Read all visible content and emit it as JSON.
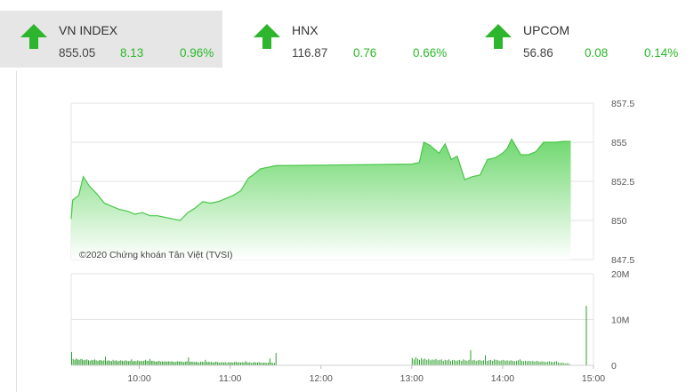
{
  "indices": [
    {
      "name": "VN INDEX",
      "value": "855.05",
      "change": "8.13",
      "percent": "0.96%",
      "direction": "up",
      "active": true
    },
    {
      "name": "HNX",
      "value": "116.87",
      "change": "0.76",
      "percent": "0.66%",
      "direction": "up",
      "active": false
    },
    {
      "name": "UPCOM",
      "value": "56.86",
      "change": "0.08",
      "percent": "0.14%",
      "direction": "up",
      "active": false
    }
  ],
  "colors": {
    "up": "#2db52d",
    "text_up": "#29b829",
    "area_top": "#7fdc7f",
    "line": "#49c649",
    "volume": "#2e9e2e"
  },
  "chart_data": [
    {
      "type": "area",
      "credit": "©2020 Chứng khoán Tân Việt (TVSI)",
      "x_tick_labels": [
        "10:00",
        "11:00",
        "12:00",
        "13:00",
        "14:00",
        "15:00"
      ],
      "y_tick_labels": [
        "857.5",
        "855",
        "852.5",
        "850",
        "847.5"
      ],
      "ylim": [
        847.5,
        857.5
      ],
      "xlim": [
        "09:15",
        "15:00"
      ],
      "grid": true,
      "x": [
        "09:15",
        "09:16",
        "09:20",
        "09:23",
        "09:27",
        "09:32",
        "09:37",
        "09:42",
        "09:47",
        "09:52",
        "09:57",
        "10:02",
        "10:07",
        "10:12",
        "10:17",
        "10:22",
        "10:27",
        "10:32",
        "10:37",
        "10:42",
        "10:47",
        "10:52",
        "10:57",
        "11:02",
        "11:07",
        "11:12",
        "11:15",
        "11:20",
        "11:25",
        "11:30",
        "13:00",
        "13:05",
        "13:08",
        "13:12",
        "13:18",
        "13:22",
        "13:26",
        "13:30",
        "13:35",
        "13:40",
        "13:45",
        "13:50",
        "13:55",
        "14:00",
        "14:03",
        "14:06",
        "14:12",
        "14:17",
        "14:22",
        "14:27",
        "14:30",
        "14:35",
        "14:40",
        "14:45"
      ],
      "y": [
        850.1,
        851.3,
        851.6,
        852.8,
        852.2,
        851.7,
        851.1,
        850.9,
        850.7,
        850.6,
        850.4,
        850.5,
        850.3,
        850.3,
        850.2,
        850.1,
        850.0,
        850.5,
        850.8,
        851.2,
        851.1,
        851.2,
        851.4,
        851.6,
        851.9,
        852.7,
        852.9,
        853.3,
        853.4,
        853.5,
        853.6,
        853.7,
        855.0,
        854.8,
        854.3,
        854.9,
        853.9,
        854.1,
        852.6,
        852.8,
        852.9,
        853.9,
        854.0,
        854.3,
        854.6,
        855.2,
        854.2,
        854.2,
        854.4,
        855.0,
        855.0,
        855.0,
        855.05,
        855.05
      ]
    },
    {
      "type": "bar",
      "y_tick_labels": [
        "20M",
        "10M",
        "0"
      ],
      "ylim": [
        0,
        20
      ],
      "unit": "M",
      "x_range": [
        "09:15",
        "15:00"
      ],
      "grid": true,
      "values": [
        2.9,
        1.4,
        1.2,
        1.5,
        1.3,
        1.2,
        1.4,
        1.3,
        1.1,
        1.2,
        1.3,
        1.1,
        1.0,
        1.2,
        1.1,
        1.3,
        1.1,
        1.0,
        1.1,
        1.2,
        1.0,
        1.1,
        1.9,
        1.0,
        1.1,
        1.0,
        0.9,
        1.2,
        1.0,
        1.1,
        0.9,
        1.0,
        1.1,
        1.0,
        0.9,
        1.1,
        1.0,
        0.9,
        1.0,
        1.3,
        0.9,
        1.0,
        0.9,
        1.1,
        0.9,
        1.0,
        0.9,
        1.0,
        1.2,
        1.0,
        1.0,
        1.4,
        1.0,
        1.0,
        0.9,
        0.8,
        0.9,
        1.0,
        0.8,
        0.9,
        0.8,
        0.9,
        0.8,
        0.9,
        0.8,
        0.9,
        0.8,
        0.7,
        0.8,
        0.9,
        0.8,
        0.9,
        0.8,
        0.7,
        0.8,
        0.9,
        1.7,
        0.8,
        0.8,
        0.8,
        0.7,
        0.8,
        0.7,
        0.6,
        0.8,
        0.8,
        0.7,
        1.2,
        0.7,
        0.8,
        0.7,
        0.8,
        0.6,
        0.7,
        0.8,
        0.7,
        0.6,
        0.6,
        0.7,
        0.6,
        0.7,
        0.5,
        0.7,
        0.6,
        0.7,
        0.6,
        0.7,
        0.8,
        0.6,
        0.7,
        0.6,
        0.7,
        0.6,
        0.9,
        0.7,
        0.6,
        0.7,
        0.5,
        0.6,
        0.7,
        0.6,
        0.6,
        0.7,
        0.6,
        0.5,
        0.6,
        0.6,
        0.5,
        0.6,
        1.5,
        0.6,
        0.5,
        0.5,
        2.7,
        1.6,
        1.3,
        1.8,
        1.4,
        1.2,
        1.6,
        1.3,
        1.5,
        1.2,
        1.4,
        1.1,
        1.3,
        1.2,
        1.4,
        1.1,
        1.2,
        1.3,
        1.0,
        1.2,
        1.1,
        1.3,
        1.0,
        1.1,
        1.2,
        1.0,
        1.1,
        1.2,
        1.0,
        1.3,
        1.1,
        1.0,
        1.2,
        3.3,
        1.1,
        1.2,
        1.0,
        1.1,
        1.2,
        1.0,
        1.1,
        2.2,
        1.0,
        1.1,
        1.2,
        1.0,
        1.3,
        1.2,
        1.1,
        1.0,
        1.1,
        1.2,
        1.0,
        1.1,
        1.0,
        1.1,
        1.0,
        0.9,
        1.0,
        1.1,
        1.3,
        1.0,
        0.9,
        1.0,
        0.9,
        1.0,
        0.9,
        1.0,
        0.8,
        1.0,
        0.9,
        0.8,
        0.9,
        0.8,
        0.7,
        0.8,
        0.9,
        0.8,
        0.7,
        0.8,
        0.9,
        0.6,
        0.5,
        0.6,
        0.5,
        0.4,
        0.5,
        0.3,
        13.0
      ]
    }
  ]
}
